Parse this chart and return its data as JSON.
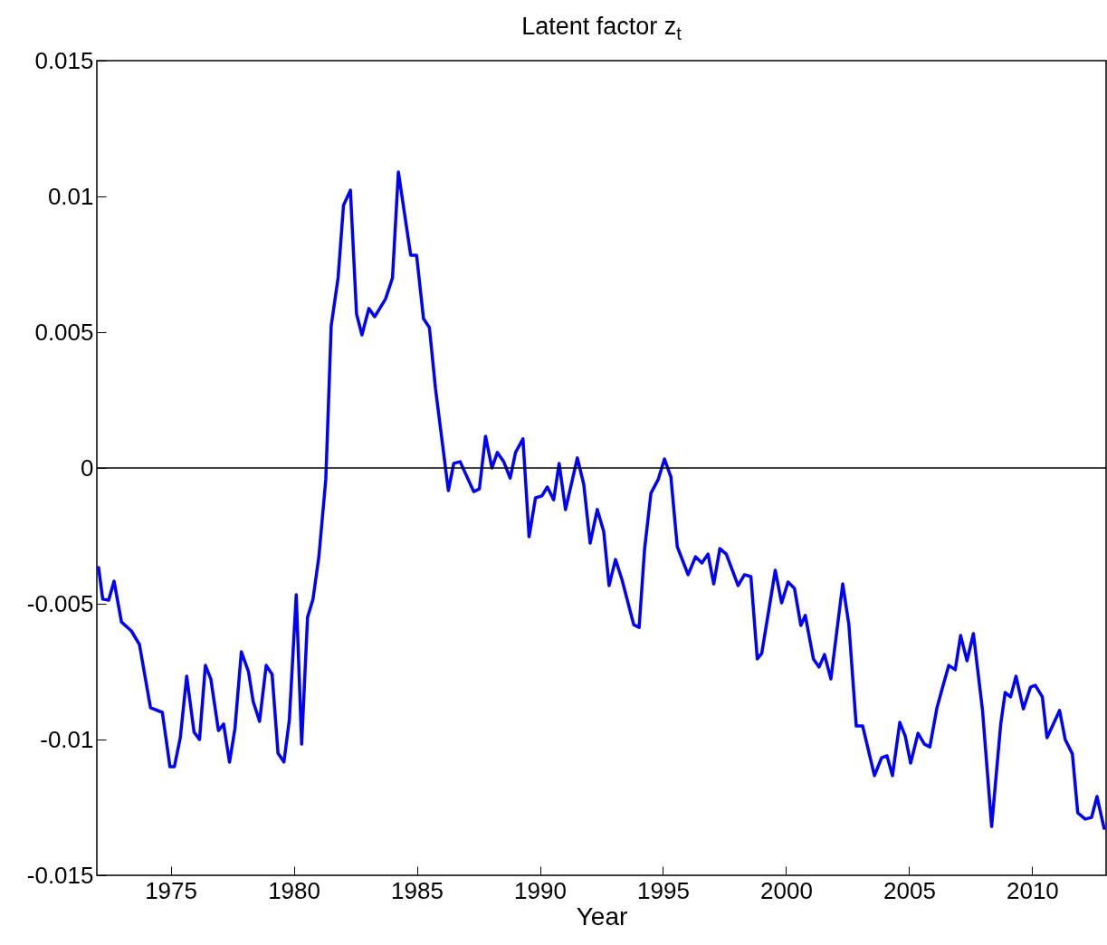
{
  "chart_data": {
    "type": "line",
    "title": "Latent factor z$_{t}$",
    "xlabel": "Year",
    "xlim": [
      1972,
      2013
    ],
    "xticks": [
      1975,
      1980,
      1985,
      1990,
      1995,
      2000,
      2005,
      2010
    ],
    "ylim": [
      -0.015,
      0.015
    ],
    "yticks": [
      -0.015,
      -0.01,
      -0.005,
      0,
      0.005,
      0.01,
      0.015
    ],
    "grid": false,
    "ref_lines": [
      {
        "axis": "y",
        "value": 0,
        "color": "#000000"
      }
    ],
    "series": [
      {
        "color": "#0000ff",
        "x": [
          1972.07,
          1972.24,
          1972.48,
          1972.7,
          1973.0,
          1973.4,
          1973.73,
          1974.18,
          1974.66,
          1974.97,
          1975.15,
          1975.39,
          1975.65,
          1975.95,
          1976.17,
          1976.41,
          1976.63,
          1976.94,
          1977.15,
          1977.39,
          1977.61,
          1977.87,
          1978.16,
          1978.35,
          1978.61,
          1978.88,
          1979.12,
          1979.36,
          1979.6,
          1979.82,
          1980.1,
          1980.32,
          1980.56,
          1980.78,
          1981.02,
          1981.3,
          1981.37,
          1981.52,
          1981.8,
          1982.02,
          1982.3,
          1982.55,
          1982.77,
          1983.05,
          1983.29,
          1983.73,
          1984.01,
          1984.25,
          1984.75,
          1984.99,
          1985.27,
          1985.51,
          1985.76,
          1986.28,
          1986.5,
          1986.76,
          1987.31,
          1987.54,
          1987.79,
          1988.05,
          1988.27,
          1988.53,
          1988.79,
          1989.01,
          1989.31,
          1989.56,
          1989.82,
          1990.08,
          1990.3,
          1990.56,
          1990.78,
          1991.04,
          1991.52,
          1991.78,
          1992.04,
          1992.33,
          1992.59,
          1992.81,
          1993.07,
          1993.33,
          1993.81,
          1994.03,
          1994.25,
          1994.51,
          1994.8,
          1995.06,
          1995.32,
          1995.58,
          1996.02,
          1996.32,
          1996.58,
          1996.83,
          1997.06,
          1997.31,
          1997.57,
          1998.05,
          1998.31,
          1998.57,
          1998.83,
          1999.01,
          1999.31,
          1999.56,
          1999.82,
          2000.08,
          2000.34,
          2000.6,
          2000.78,
          2001.11,
          2001.34,
          2001.56,
          2001.82,
          2002.3,
          2002.55,
          2002.85,
          2003.11,
          2003.59,
          2003.88,
          2004.1,
          2004.32,
          2004.62,
          2004.84,
          2005.06,
          2005.36,
          2005.62,
          2005.84,
          2006.13,
          2006.35,
          2006.61,
          2006.87,
          2007.09,
          2007.35,
          2007.61,
          2007.98,
          2008.35,
          2008.72,
          2008.9,
          2009.12,
          2009.34,
          2009.64,
          2009.93,
          2010.12,
          2010.41,
          2010.6,
          2011.11,
          2011.34,
          2011.63,
          2011.85,
          2012.15,
          2012.41,
          2012.63,
          2012.92
        ],
        "values": [
          -0.00367,
          -0.00483,
          -0.00487,
          -0.00417,
          -0.00567,
          -0.006,
          -0.0065,
          -0.00883,
          -0.009,
          -0.011,
          -0.011,
          -0.00993,
          -0.00767,
          -0.00973,
          -0.01,
          -0.00727,
          -0.00777,
          -0.00967,
          -0.00943,
          -0.01083,
          -0.0096,
          -0.00677,
          -0.0075,
          -0.0086,
          -0.00933,
          -0.00727,
          -0.0076,
          -0.0105,
          -0.01083,
          -0.00927,
          -0.00467,
          -0.01017,
          -0.0055,
          -0.00483,
          -0.00327,
          -0.00043,
          0.00133,
          0.00523,
          0.007,
          0.00967,
          0.01023,
          0.00567,
          0.0049,
          0.00587,
          0.00557,
          0.00623,
          0.007,
          0.0109,
          0.00783,
          0.00783,
          0.0055,
          0.00517,
          0.0029,
          -0.00083,
          0.00017,
          0.00023,
          -0.00087,
          -0.00077,
          0.00117,
          0,
          0.00057,
          0.00023,
          -0.00037,
          0.00057,
          0.00107,
          -0.00253,
          -0.0011,
          -0.00103,
          -0.0007,
          -0.00117,
          0.00017,
          -0.00153,
          0.00037,
          -0.0006,
          -0.00277,
          -0.00153,
          -0.00233,
          -0.00433,
          -0.00337,
          -0.0041,
          -0.00577,
          -0.00587,
          -0.003,
          -0.00093,
          -0.00043,
          0.00033,
          -0.00033,
          -0.0029,
          -0.00393,
          -0.00327,
          -0.0035,
          -0.00317,
          -0.00427,
          -0.00297,
          -0.00317,
          -0.00433,
          -0.00393,
          -0.004,
          -0.00703,
          -0.00683,
          -0.00517,
          -0.00377,
          -0.00497,
          -0.0042,
          -0.00443,
          -0.0058,
          -0.00543,
          -0.00703,
          -0.00733,
          -0.00687,
          -0.00777,
          -0.00427,
          -0.00577,
          -0.0095,
          -0.0095,
          -0.01133,
          -0.01067,
          -0.0106,
          -0.01133,
          -0.00937,
          -0.00987,
          -0.01087,
          -0.00977,
          -0.01017,
          -0.01027,
          -0.00883,
          -0.0081,
          -0.00727,
          -0.00743,
          -0.00617,
          -0.0071,
          -0.0061,
          -0.00893,
          -0.0132,
          -0.00943,
          -0.00827,
          -0.00843,
          -0.00767,
          -0.00887,
          -0.00807,
          -0.008,
          -0.00843,
          -0.00993,
          -0.00893,
          -0.01,
          -0.01053,
          -0.0127,
          -0.01293,
          -0.01287,
          -0.0121,
          -0.01327
        ]
      }
    ]
  }
}
